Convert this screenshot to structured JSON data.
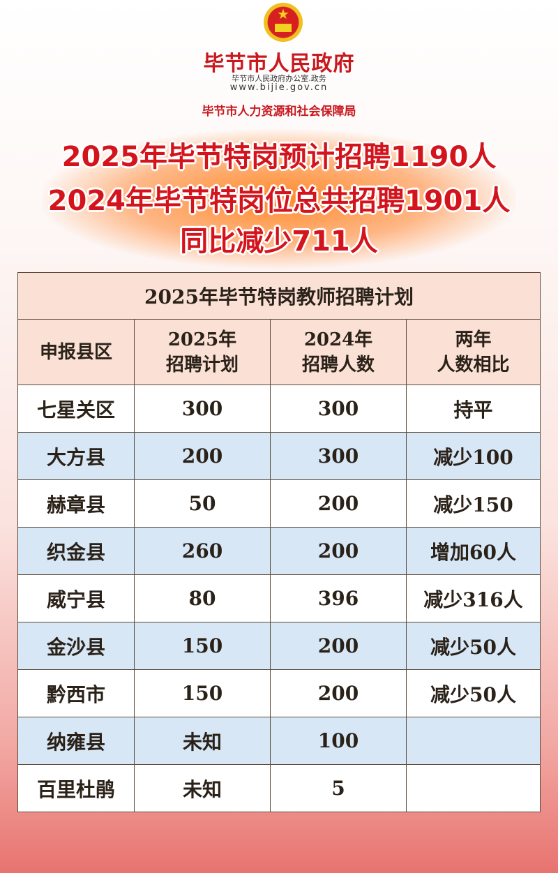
{
  "header": {
    "org": "毕节市人民政府",
    "office": "毕节市人民政府办公室.政务",
    "url": "www.bijie.gov.cn",
    "bureau": "毕节市人力资源和社会保障局"
  },
  "headlines": [
    "2025年毕节特岗预计招聘1190人",
    "2024年毕节特岗位总共招聘1901人",
    "同比减少711人"
  ],
  "table": {
    "title": "2025年毕节特岗教师招聘计划",
    "columns": [
      [
        "申报县区"
      ],
      [
        "2025年",
        "招聘计划"
      ],
      [
        "2024年",
        "招聘人数"
      ],
      [
        "两年",
        "人数相比"
      ]
    ],
    "rows": [
      [
        "七星关区",
        "300",
        "300",
        "持平"
      ],
      [
        "大方县",
        "200",
        "300",
        "减少100"
      ],
      [
        "赫章县",
        "50",
        "200",
        "减少150"
      ],
      [
        "织金县",
        "260",
        "200",
        "增加60人"
      ],
      [
        "威宁县",
        "80",
        "396",
        "减少316人"
      ],
      [
        "金沙县",
        "150",
        "200",
        "减少50人"
      ],
      [
        "黔西市",
        "150",
        "200",
        "减少50人"
      ],
      [
        "纳雍县",
        "未知",
        "100",
        ""
      ],
      [
        "百里杜鹃",
        "未知",
        "5",
        ""
      ]
    ]
  },
  "colors": {
    "brand_red": "#d4141c",
    "row_alt": "#d7e7f6",
    "header_bg": "#fbe0d5"
  }
}
